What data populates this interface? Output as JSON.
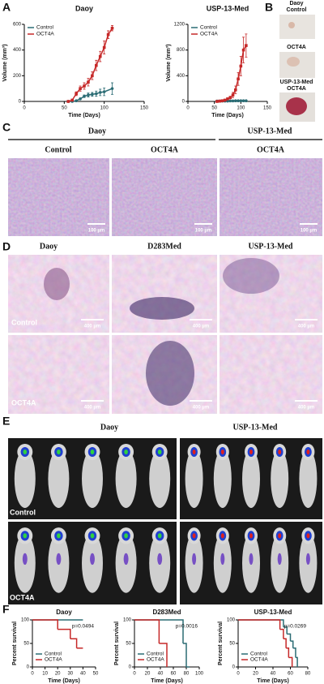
{
  "panel_labels": [
    "A",
    "B",
    "C",
    "D",
    "E",
    "F"
  ],
  "panel_b": {
    "labels": [
      "Daoy",
      "Control",
      "OCT4A",
      "USP-13-Med",
      "OCT4A"
    ]
  },
  "panel_c": {
    "groups": [
      "Daoy",
      "USP-13-Med"
    ],
    "columns": [
      "Control",
      "OCT4A",
      "OCT4A"
    ],
    "scale": "100 µm"
  },
  "panel_d": {
    "columns": [
      "Daoy",
      "D283Med",
      "USP-13-Med"
    ],
    "rows": [
      "Control",
      "OCT4A"
    ],
    "scale": "400 µm"
  },
  "panel_e": {
    "columns": [
      "Daoy",
      "USP-13-Med"
    ],
    "rows": [
      "Control",
      "OCT4A"
    ]
  },
  "chart_data": [
    {
      "type": "line",
      "title": "Daoy",
      "x_label": "Time (Days)",
      "y_label": "Volume (mm³)",
      "xlim": [
        0,
        150
      ],
      "xticks": [
        0,
        50,
        100,
        150
      ],
      "ylim": [
        0,
        600
      ],
      "yticks": [
        0,
        200,
        400,
        600
      ],
      "legend": "upper left",
      "series": [
        {
          "name": "Control",
          "color": "#2b6c74",
          "x": [
            55,
            60,
            65,
            70,
            75,
            80,
            85,
            90,
            95,
            100,
            110
          ],
          "values": [
            0,
            0,
            5,
            20,
            40,
            50,
            55,
            60,
            70,
            75,
            100
          ],
          "errors": [
            0,
            0,
            2,
            5,
            10,
            15,
            15,
            20,
            25,
            30,
            45
          ]
        },
        {
          "name": "OCT4A",
          "color": "#c62828",
          "x": [
            55,
            60,
            65,
            70,
            75,
            80,
            85,
            90,
            95,
            100,
            105,
            110
          ],
          "values": [
            0,
            10,
            60,
            100,
            120,
            150,
            200,
            280,
            350,
            420,
            520,
            570
          ],
          "errors": [
            0,
            5,
            15,
            20,
            25,
            30,
            30,
            40,
            40,
            50,
            30,
            20
          ]
        }
      ]
    },
    {
      "type": "line",
      "title": "USP-13-Med",
      "x_label": "Time (Days)",
      "y_label": "Volume (mm³)",
      "xlim": [
        0,
        150
      ],
      "xticks": [
        0,
        50,
        100,
        150
      ],
      "ylim": [
        0,
        1200
      ],
      "yticks": [
        0,
        400,
        800,
        1200
      ],
      "legend": "upper left",
      "series": [
        {
          "name": "Control",
          "color": "#2b6c74",
          "x": [
            55,
            60,
            65,
            70,
            75,
            80,
            85,
            90,
            95,
            100,
            105,
            110
          ],
          "values": [
            5,
            5,
            5,
            5,
            5,
            8,
            8,
            10,
            10,
            10,
            10,
            10
          ],
          "errors": [
            2,
            2,
            2,
            2,
            3,
            3,
            3,
            4,
            4,
            4,
            4,
            4
          ]
        },
        {
          "name": "OCT4A",
          "color": "#c62828",
          "x": [
            55,
            60,
            65,
            70,
            75,
            80,
            85,
            90,
            95,
            100,
            105,
            110
          ],
          "values": [
            0,
            5,
            10,
            20,
            40,
            60,
            100,
            180,
            350,
            550,
            800,
            870
          ],
          "errors": [
            0,
            3,
            5,
            10,
            15,
            20,
            40,
            60,
            100,
            150,
            200,
            180
          ]
        }
      ]
    },
    {
      "type": "survival",
      "title": "Daoy",
      "x_label": "Time (Days)",
      "y_label": "Percent survival",
      "annotation": "p=0.0494",
      "xlim": [
        0,
        50
      ],
      "xticks": [
        0,
        10,
        20,
        30,
        40,
        50
      ],
      "ylim": [
        0,
        100
      ],
      "yticks": [
        0,
        50,
        100
      ],
      "legend": "lower left",
      "series": [
        {
          "name": "Control",
          "color": "#2b6c74",
          "x": [
            0,
            40
          ],
          "values": [
            100,
            100
          ]
        },
        {
          "name": "OCT4A",
          "color": "#c62828",
          "x": [
            0,
            20,
            30,
            35,
            40
          ],
          "values": [
            100,
            80,
            60,
            40,
            40
          ]
        }
      ]
    },
    {
      "type": "survival",
      "title": "D283Med",
      "x_label": "Time (Days)",
      "y_label": "Percent survival",
      "annotation": "p=0.0016",
      "xlim": [
        0,
        100
      ],
      "xticks": [
        0,
        20,
        40,
        60,
        80,
        100
      ],
      "ylim": [
        0,
        100
      ],
      "yticks": [
        0,
        50,
        100
      ],
      "legend": "lower left",
      "series": [
        {
          "name": "Control",
          "color": "#2b6c74",
          "x": [
            0,
            75,
            80,
            85
          ],
          "values": [
            100,
            50,
            0,
            0
          ]
        },
        {
          "name": "OCT4A",
          "color": "#c62828",
          "x": [
            0,
            38,
            50
          ],
          "values": [
            100,
            50,
            0
          ]
        }
      ]
    },
    {
      "type": "survival",
      "title": "USP-13-Med",
      "x_label": "Time (Days)",
      "y_label": "Percent survival",
      "annotation": "p=0.0269",
      "xlim": [
        0,
        80
      ],
      "xticks": [
        0,
        20,
        40,
        60,
        80
      ],
      "ylim": [
        0,
        100
      ],
      "yticks": [
        0,
        50,
        100
      ],
      "legend": "lower left",
      "series": [
        {
          "name": "Control",
          "color": "#2b6c74",
          "x": [
            0,
            52,
            56,
            60,
            63,
            66,
            68
          ],
          "values": [
            100,
            85,
            70,
            55,
            40,
            20,
            0
          ]
        },
        {
          "name": "OCT4A",
          "color": "#c62828",
          "x": [
            0,
            48,
            52,
            55,
            58,
            62
          ],
          "values": [
            100,
            80,
            60,
            40,
            20,
            0
          ]
        }
      ]
    }
  ]
}
